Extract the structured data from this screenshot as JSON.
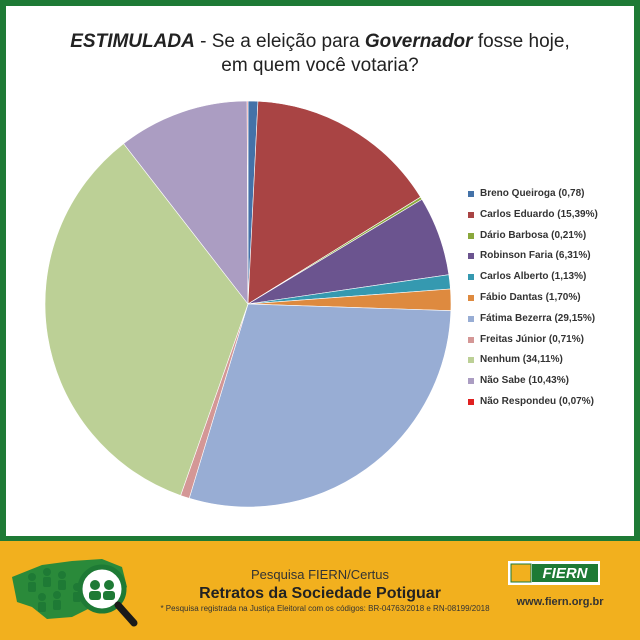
{
  "title": {
    "bold_prefix": "ESTIMULADA",
    "line1_mid": " - Se a eleição para ",
    "bold_word": "Governador",
    "line1_end": " fosse hoje,",
    "line2": "em quem você votaria?"
  },
  "chart_data": {
    "type": "pie",
    "title": "ESTIMULADA - Se a eleição para Governador fosse hoje, em quem você votaria?",
    "legend_position": "right",
    "slices": [
      {
        "label": "Breno Queiroga (0,78)",
        "value": 0.78,
        "color": "#4472a8"
      },
      {
        "label": "Carlos Eduardo (15,39%)",
        "value": 15.39,
        "color": "#a94444"
      },
      {
        "label": "Dário Barbosa (0,21%)",
        "value": 0.21,
        "color": "#8aa83c"
      },
      {
        "label": "Robinson Faria (6,31%)",
        "value": 6.31,
        "color": "#6b548f"
      },
      {
        "label": "Carlos Alberto (1,13%)",
        "value": 1.13,
        "color": "#3599b0"
      },
      {
        "label": "Fábio Dantas (1,70%)",
        "value": 1.7,
        "color": "#de8a3f"
      },
      {
        "label": "Fátima Bezerra (29,15%)",
        "value": 29.15,
        "color": "#98add4"
      },
      {
        "label": "Freitas Júnior (0,71%)",
        "value": 0.71,
        "color": "#d49796"
      },
      {
        "label": "Nenhum (34,11%)",
        "value": 34.11,
        "color": "#bcd096"
      },
      {
        "label": "Não Sabe (10,43%)",
        "value": 10.43,
        "color": "#ab9dc2"
      },
      {
        "label": "Não Respondeu (0,07%)",
        "value": 0.07,
        "color": "#e02020"
      }
    ]
  },
  "footer": {
    "line1": "Pesquisa FIERN/Certus",
    "line2": "Retratos da Sociedade Potiguar",
    "note": "* Pesquisa registrada na Justiça Eleitoral com os códigos: BR-04763/2018 e RN-08199/2018",
    "brand": "FIERN",
    "url": "www.fiern.org.br",
    "colors": {
      "band": "#f2b01e",
      "frame": "#1e7a35",
      "brand_green": "#1e7a35"
    }
  }
}
